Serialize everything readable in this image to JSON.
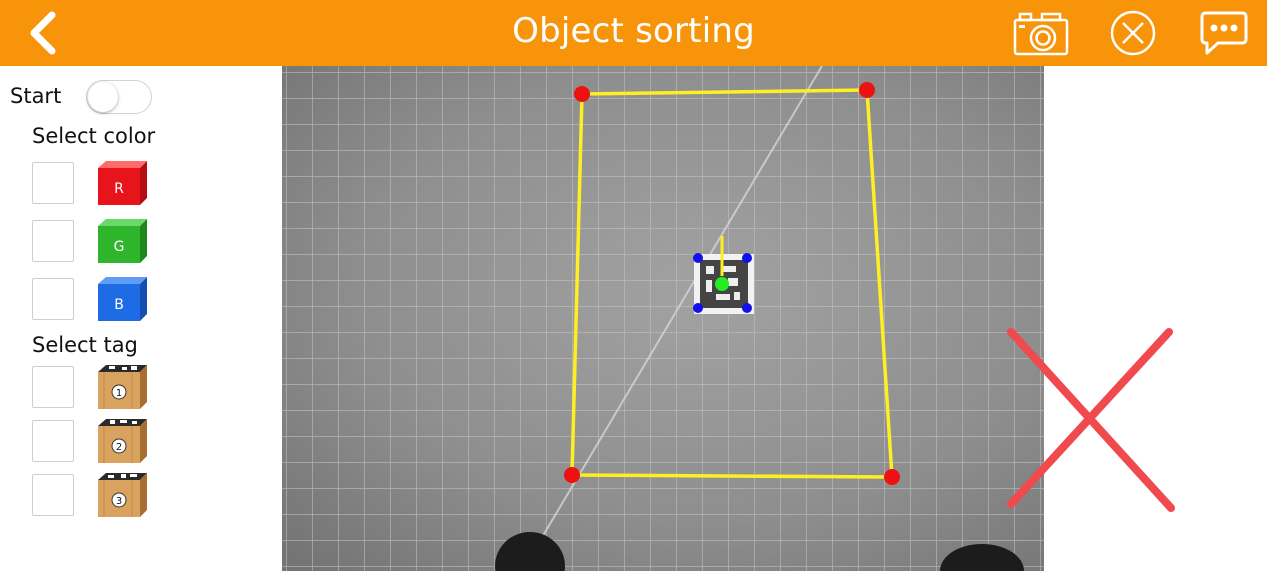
{
  "header": {
    "title": "Object sorting",
    "background_color": "#f7940a",
    "icons": [
      "chevron-left-icon",
      "camera-icon",
      "close-circle-icon",
      "chat-bubble-icon"
    ]
  },
  "sidebar": {
    "start_label": "Start",
    "start_toggle_on": false,
    "select_color_label": "Select color",
    "colors": [
      {
        "letter": "R",
        "color": "#e8141c",
        "checked": false
      },
      {
        "letter": "G",
        "color": "#2fb52c",
        "checked": false
      },
      {
        "letter": "B",
        "color": "#1e6be6",
        "checked": false
      }
    ],
    "select_tag_label": "Select tag",
    "tags": [
      {
        "number": "1",
        "checked": false
      },
      {
        "number": "2",
        "checked": false
      },
      {
        "number": "3",
        "checked": false
      }
    ]
  },
  "camera": {
    "region_line_color": "#ffee22",
    "corner_color": "#ee1111",
    "tag_corner_color": "#1010ee",
    "tag_center_color": "#22ee22",
    "overlay_x_color": "#f0494e"
  }
}
